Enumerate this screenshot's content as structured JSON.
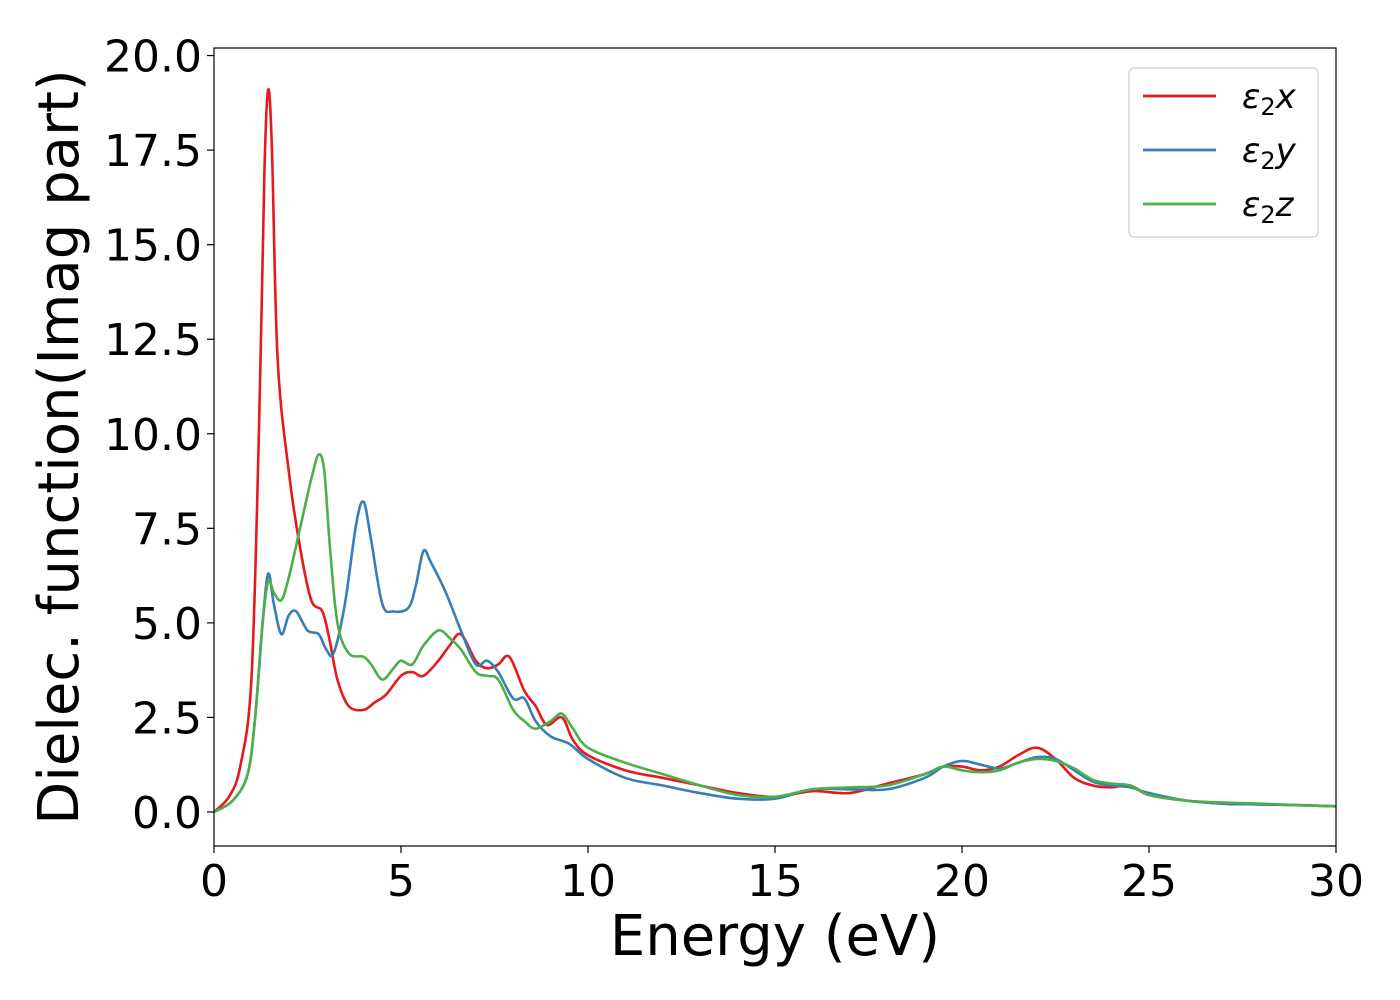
{
  "chart_data": {
    "type": "line",
    "xlabel": "Energy (eV)",
    "ylabel": "Dielec. function(Imag part)",
    "xlim": [
      0,
      30
    ],
    "ylim": [
      -0.9,
      20.2
    ],
    "xticks": [
      0,
      5,
      10,
      15,
      20,
      25,
      30
    ],
    "xtick_labels": [
      "0",
      "5",
      "10",
      "15",
      "20",
      "25",
      "30"
    ],
    "yticks": [
      0,
      2.5,
      5,
      7.5,
      10,
      12.5,
      15,
      17.5,
      20
    ],
    "ytick_labels": [
      "0.0",
      "2.5",
      "5.0",
      "7.5",
      "10.0",
      "12.5",
      "15.0",
      "17.5",
      "20.0"
    ],
    "grid": false,
    "legend_position": "top-right",
    "series": [
      {
        "name": "ε2x",
        "legend_base": "ε",
        "legend_sub": "2",
        "legend_var": "x",
        "color": "#e41a1c",
        "x": [
          0,
          0.4,
          0.7,
          1.0,
          1.2,
          1.35,
          1.45,
          1.55,
          1.7,
          2.0,
          2.3,
          2.6,
          2.9,
          3.1,
          3.3,
          3.6,
          4.0,
          4.3,
          4.6,
          5.0,
          5.3,
          5.6,
          6.0,
          6.3,
          6.6,
          7.0,
          7.3,
          7.6,
          7.9,
          8.3,
          8.6,
          8.9,
          9.3,
          9.6,
          10.0,
          11.0,
          12.0,
          13.0,
          14.0,
          15.0,
          16.0,
          17.0,
          18.0,
          19.0,
          19.5,
          20.0,
          20.5,
          21.0,
          21.5,
          22.0,
          22.5,
          23.0,
          23.5,
          24.0,
          24.5,
          25.0,
          26.0,
          27.0,
          28.0,
          29.0,
          30.0
        ],
        "y": [
          0.0,
          0.4,
          1.2,
          3.5,
          10.0,
          17.0,
          19.1,
          17.5,
          12.0,
          9.0,
          7.0,
          5.6,
          5.3,
          4.5,
          3.5,
          2.8,
          2.7,
          2.9,
          3.1,
          3.6,
          3.7,
          3.6,
          4.0,
          4.4,
          4.7,
          4.0,
          3.8,
          3.9,
          4.1,
          3.2,
          2.8,
          2.3,
          2.5,
          1.9,
          1.5,
          1.1,
          0.9,
          0.7,
          0.5,
          0.4,
          0.55,
          0.5,
          0.75,
          1.0,
          1.2,
          1.2,
          1.1,
          1.2,
          1.5,
          1.7,
          1.4,
          0.9,
          0.7,
          0.65,
          0.7,
          0.45,
          0.3,
          0.22,
          0.2,
          0.18,
          0.15
        ]
      },
      {
        "name": "ε2y",
        "legend_base": "ε",
        "legend_sub": "2",
        "legend_var": "y",
        "color": "#377eb8",
        "x": [
          0,
          0.5,
          0.9,
          1.1,
          1.3,
          1.45,
          1.6,
          1.8,
          2.0,
          2.2,
          2.5,
          2.8,
          3.0,
          3.2,
          3.5,
          3.8,
          4.0,
          4.2,
          4.5,
          4.8,
          5.2,
          5.4,
          5.6,
          5.8,
          6.2,
          6.6,
          7.0,
          7.3,
          7.6,
          8.0,
          8.3,
          8.6,
          9.0,
          9.5,
          10.0,
          11.0,
          12.0,
          13.0,
          14.0,
          15.0,
          16.0,
          17.0,
          18.0,
          19.0,
          19.5,
          20.0,
          20.5,
          21.0,
          21.5,
          22.0,
          22.5,
          23.0,
          23.5,
          24.0,
          24.5,
          25.0,
          26.0,
          27.0,
          28.0,
          29.0,
          30.0
        ],
        "y": [
          0.0,
          0.3,
          1.0,
          2.5,
          5.0,
          6.3,
          5.5,
          4.7,
          5.2,
          5.3,
          4.8,
          4.7,
          4.3,
          4.2,
          5.5,
          7.6,
          8.2,
          7.2,
          5.5,
          5.3,
          5.4,
          6.0,
          6.9,
          6.6,
          5.8,
          4.8,
          3.9,
          4.0,
          3.7,
          3.0,
          3.0,
          2.4,
          2.0,
          1.8,
          1.4,
          0.9,
          0.7,
          0.5,
          0.35,
          0.35,
          0.6,
          0.6,
          0.6,
          0.9,
          1.2,
          1.35,
          1.25,
          1.15,
          1.3,
          1.45,
          1.4,
          1.1,
          0.8,
          0.7,
          0.65,
          0.5,
          0.3,
          0.22,
          0.2,
          0.18,
          0.15
        ]
      },
      {
        "name": "ε2z",
        "legend_base": "ε",
        "legend_sub": "2",
        "legend_var": "z",
        "color": "#4daf4a",
        "x": [
          0,
          0.5,
          0.9,
          1.1,
          1.3,
          1.45,
          1.6,
          1.8,
          2.0,
          2.3,
          2.6,
          2.8,
          2.95,
          3.1,
          3.3,
          3.6,
          4.0,
          4.2,
          4.5,
          4.8,
          5.0,
          5.3,
          5.6,
          6.0,
          6.3,
          6.6,
          7.0,
          7.3,
          7.6,
          8.0,
          8.3,
          8.6,
          9.0,
          9.3,
          9.6,
          10.0,
          11.0,
          12.0,
          13.0,
          14.0,
          15.0,
          16.0,
          17.0,
          18.0,
          19.0,
          19.5,
          20.0,
          20.5,
          21.0,
          21.5,
          22.0,
          22.5,
          23.0,
          23.5,
          24.0,
          24.5,
          25.0,
          26.0,
          27.0,
          28.0,
          29.0,
          30.0
        ],
        "y": [
          0.0,
          0.3,
          1.0,
          2.5,
          5.0,
          6.1,
          5.8,
          5.6,
          6.2,
          7.5,
          8.8,
          9.45,
          9.0,
          7.0,
          5.0,
          4.2,
          4.1,
          3.9,
          3.5,
          3.8,
          4.0,
          3.9,
          4.4,
          4.8,
          4.6,
          4.3,
          3.7,
          3.6,
          3.5,
          2.7,
          2.4,
          2.2,
          2.4,
          2.6,
          2.2,
          1.7,
          1.3,
          1.0,
          0.7,
          0.45,
          0.4,
          0.6,
          0.65,
          0.7,
          1.0,
          1.2,
          1.1,
          1.05,
          1.1,
          1.3,
          1.4,
          1.35,
          1.15,
          0.85,
          0.75,
          0.7,
          0.45,
          0.3,
          0.25,
          0.22,
          0.18,
          0.15
        ]
      }
    ]
  }
}
